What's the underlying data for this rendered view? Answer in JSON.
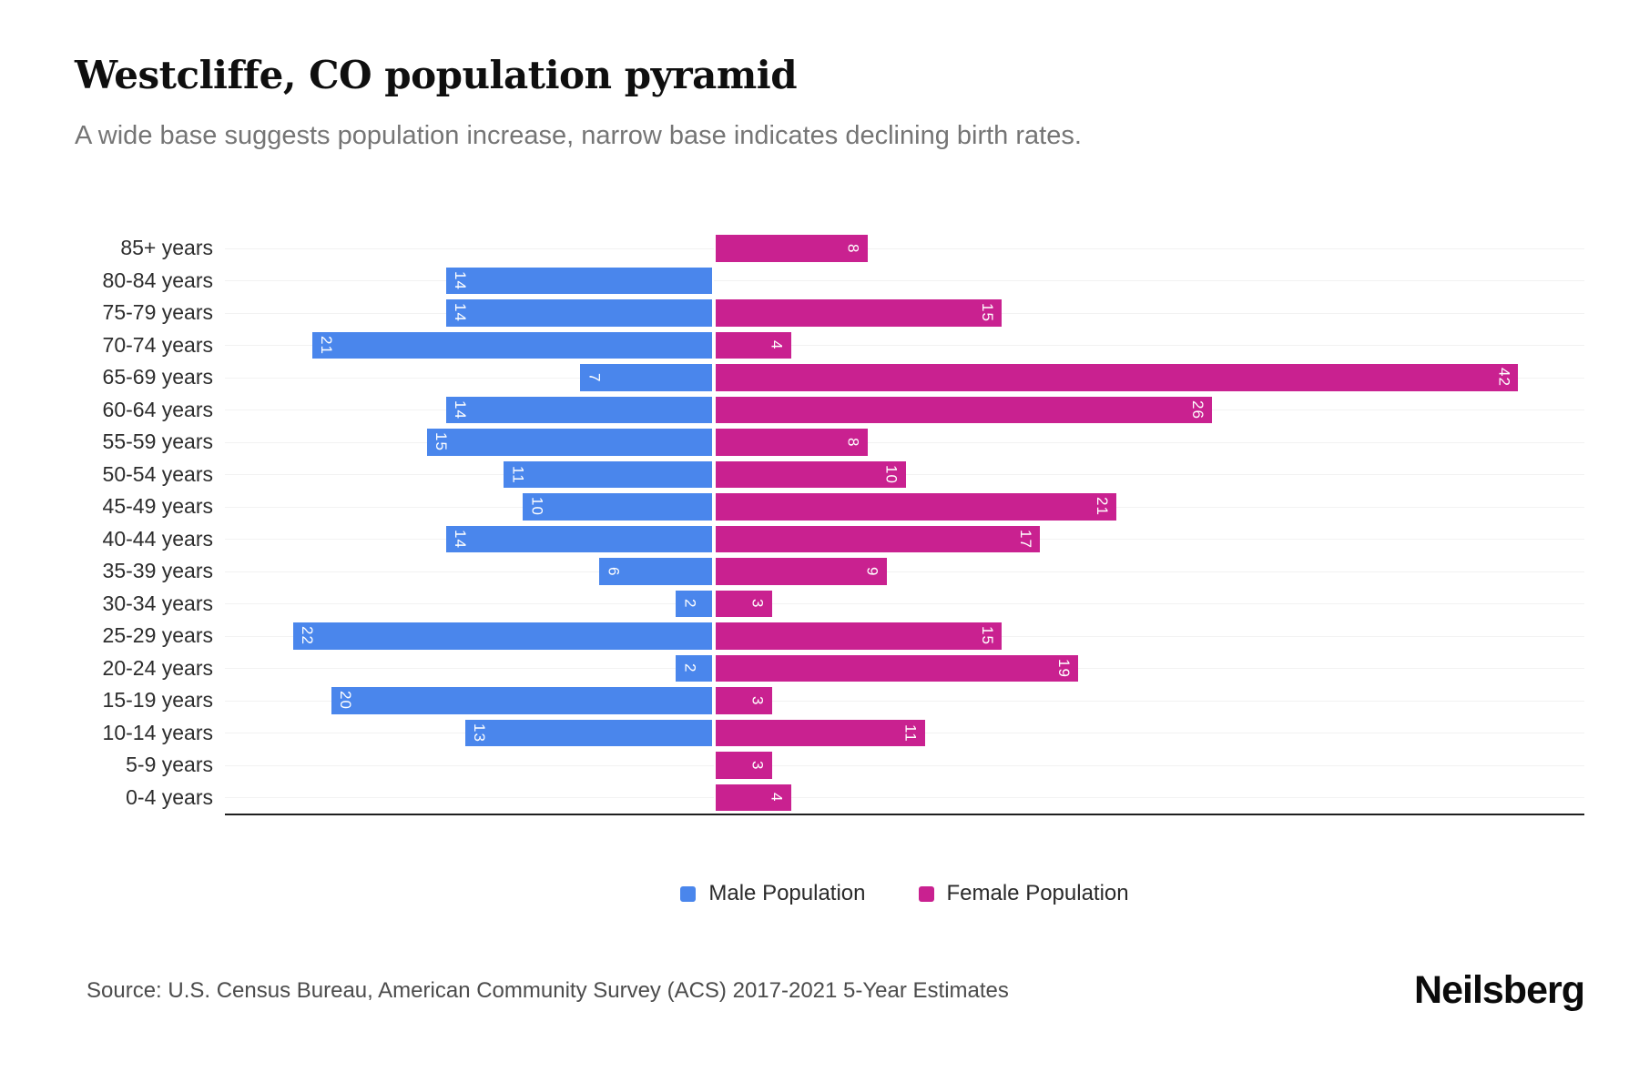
{
  "header": {
    "title": "Westcliffe, CO population pyramid",
    "subtitle": "A wide base suggests population increase, narrow base indicates declining birth rates."
  },
  "chart_data": {
    "type": "bar",
    "variant": "population-pyramid",
    "title": "Westcliffe, CO population pyramid",
    "categories": [
      "85+ years",
      "80-84 years",
      "75-79 years",
      "70-74 years",
      "65-69 years",
      "60-64 years",
      "55-59 years",
      "50-54 years",
      "45-49 years",
      "40-44 years",
      "35-39 years",
      "30-34 years",
      "25-29 years",
      "20-24 years",
      "15-19 years",
      "10-14 years",
      "5-9 years",
      "0-4 years"
    ],
    "series": [
      {
        "name": "Male Population",
        "side": "left",
        "color": "#4a86ec",
        "values": [
          0,
          14,
          14,
          21,
          7,
          14,
          15,
          11,
          10,
          14,
          6,
          2,
          22,
          2,
          20,
          13,
          0,
          0
        ]
      },
      {
        "name": "Female Population",
        "side": "right",
        "color": "#c92190",
        "values": [
          8,
          0,
          15,
          4,
          42,
          26,
          8,
          10,
          21,
          17,
          9,
          3,
          15,
          19,
          3,
          11,
          3,
          4
        ]
      }
    ],
    "value_label_style": "white, rotated 90deg, inside outer end of bar, hidden when value is 0",
    "layout": {
      "center_pct": 36,
      "unit_pct": 1.408,
      "gridlines": "light horizontal line per category row",
      "legend_position": "bottom-center",
      "baseline_axis": "solid dark line under last row"
    }
  },
  "legend": {
    "items": [
      {
        "label": "Male Population",
        "color": "#4a86ec"
      },
      {
        "label": "Female Population",
        "color": "#c92190"
      }
    ]
  },
  "footer": {
    "source": "Source: U.S. Census Bureau, American Community Survey (ACS) 2017-2021 5-Year Estimates",
    "brand": "Neilsberg"
  }
}
